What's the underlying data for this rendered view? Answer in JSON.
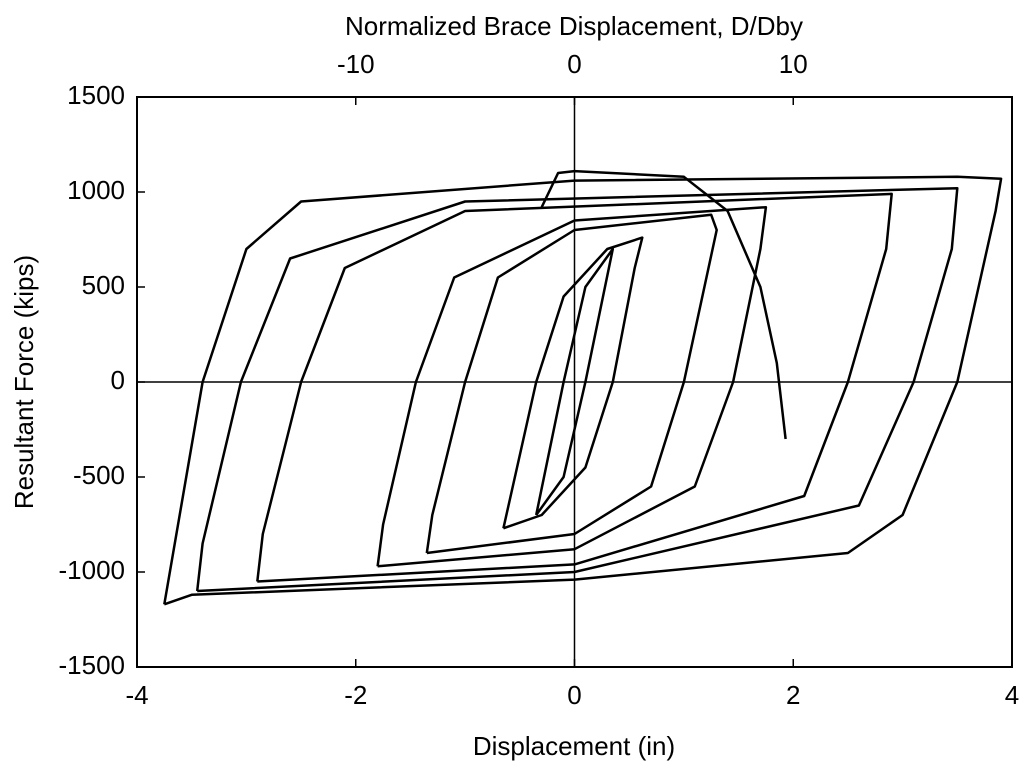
{
  "chart_data": {
    "type": "line",
    "xlabel": "Displacement (in)",
    "ylabel": "Resultant Force (kips)",
    "x2label": "Normalized Brace Displacement, D/Dby",
    "xlim": [
      -4,
      4
    ],
    "xticks": [
      -4,
      -2,
      0,
      2,
      4
    ],
    "ylim": [
      -1500,
      1500
    ],
    "yticks": [
      -1500,
      -1000,
      -500,
      0,
      500,
      1000,
      1500
    ],
    "x2lim": [
      -20,
      20
    ],
    "x2ticks": [
      -10,
      0,
      10
    ],
    "zero_lines": true,
    "series": [
      {
        "color": "#000000",
        "x": [
          -0.35,
          -0.1,
          0.1,
          0.35,
          0.1,
          -0.1,
          -0.35
        ],
        "values": [
          -700,
          0,
          500,
          700,
          0,
          -500,
          -700
        ]
      },
      {
        "color": "#000000",
        "x": [
          -0.65,
          -0.35,
          -0.1,
          0.3,
          0.62,
          0.55,
          0.35,
          0.1,
          -0.3,
          -0.65
        ],
        "values": [
          -770,
          0,
          450,
          700,
          760,
          600,
          0,
          -450,
          -700,
          -770
        ]
      },
      {
        "color": "#000000",
        "x": [
          -1.35,
          -1.3,
          -1.0,
          -0.7,
          0,
          1.25,
          1.3,
          1.0,
          0.7,
          0,
          -1.35
        ],
        "values": [
          -900,
          -700,
          0,
          550,
          800,
          880,
          800,
          0,
          -550,
          -800,
          -900
        ]
      },
      {
        "color": "#000000",
        "x": [
          -1.8,
          -1.75,
          -1.45,
          -1.1,
          0,
          1.75,
          1.7,
          1.45,
          1.1,
          0,
          -1.8
        ],
        "values": [
          -970,
          -750,
          0,
          550,
          850,
          920,
          700,
          0,
          -550,
          -880,
          -970
        ]
      },
      {
        "color": "#000000",
        "x": [
          -2.9,
          -2.85,
          -2.5,
          -2.1,
          -1,
          2.9,
          2.85,
          2.5,
          2.1,
          0,
          -2.9
        ],
        "values": [
          -1050,
          -800,
          0,
          600,
          900,
          990,
          700,
          0,
          -600,
          -960,
          -1050
        ]
      },
      {
        "color": "#000000",
        "x": [
          -3.45,
          -3.4,
          -3.05,
          -2.6,
          -1,
          3.5,
          3.45,
          3.1,
          2.6,
          0,
          -3.45
        ],
        "values": [
          -1100,
          -850,
          0,
          650,
          950,
          1020,
          700,
          0,
          -650,
          -1000,
          -1100
        ]
      },
      {
        "color": "#000000",
        "x": [
          -3.75,
          -3.4,
          -3.0,
          -2.5,
          0,
          3.5,
          3.9,
          3.85,
          3.5,
          3.0,
          2.5,
          0,
          -3.5,
          -3.75
        ],
        "values": [
          -1170,
          0,
          700,
          950,
          1060,
          1080,
          1070,
          900,
          0,
          -700,
          -900,
          -1040,
          -1120,
          -1170
        ]
      },
      {
        "color": "#000000",
        "x": [
          -0.3,
          -0.15,
          0,
          1,
          1.4,
          1.7,
          1.85,
          1.93
        ],
        "values": [
          920,
          1100,
          1110,
          1080,
          900,
          500,
          100,
          -300
        ]
      }
    ]
  }
}
